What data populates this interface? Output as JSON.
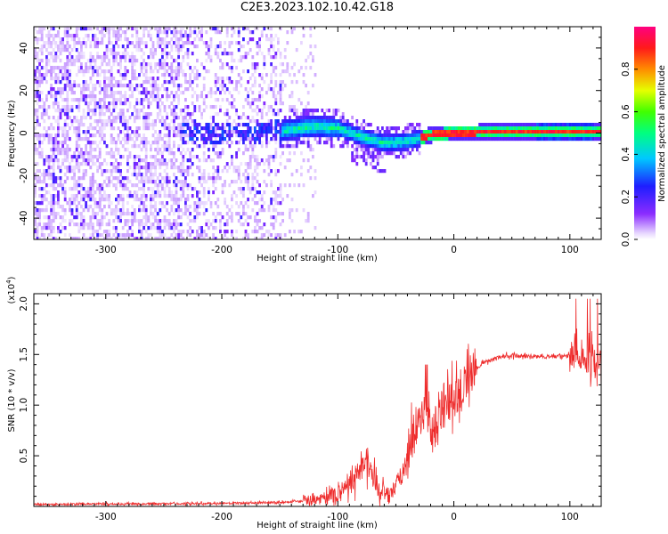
{
  "title": "C2E3.2023.102.10.42.G18",
  "chart_data": [
    {
      "type": "heatmap",
      "xlabel": "Height of straight line (km)",
      "ylabel": "Frequency (Hz)",
      "xlim": [
        -362,
        127
      ],
      "ylim": [
        -50,
        50
      ],
      "x_ticks": [
        -300,
        -200,
        -100,
        0,
        100
      ],
      "y_ticks": [
        -40,
        -20,
        0,
        20,
        40
      ],
      "colorbar": {
        "label": "Normalized spectral amplitude",
        "range": [
          0.0,
          1.0
        ],
        "ticks": [
          0.0,
          0.2,
          0.4,
          0.6,
          0.8
        ],
        "tick_labels": [
          "0.0",
          "0.2",
          "0.4",
          "0.6",
          "0.8"
        ]
      },
      "ridge": [
        {
          "x": -230,
          "f": 0
        },
        {
          "x": -200,
          "f": 0
        },
        {
          "x": -150,
          "f": 2
        },
        {
          "x": -120,
          "f": 4
        },
        {
          "x": -100,
          "f": 3
        },
        {
          "x": -80,
          "f": -1
        },
        {
          "x": -60,
          "f": -4
        },
        {
          "x": -40,
          "f": -3
        },
        {
          "x": -20,
          "f": 0
        },
        {
          "x": 0,
          "f": 1
        },
        {
          "x": 50,
          "f": 1.5
        },
        {
          "x": 100,
          "f": 1.5
        },
        {
          "x": 127,
          "f": 1.5
        }
      ]
    },
    {
      "type": "line",
      "xlabel": "Height of straight line (km)",
      "ylabel": "SNR (10 * v/v)",
      "y_multiplier": "(x10",
      "y_multiplier_exp": "4",
      "y_multiplier_close": ")",
      "xlim": [
        -362,
        127
      ],
      "ylim": [
        0,
        2.1
      ],
      "x_ticks": [
        -300,
        -200,
        -100,
        0,
        100
      ],
      "y_ticks": [
        0.5,
        1.0,
        1.5,
        2.0
      ],
      "y_tick_labels": [
        "0.5",
        "1.0",
        "1.5",
        "2.0"
      ],
      "color": "#ee2b2b",
      "series_trend": [
        {
          "x": -362,
          "y": 0.02
        },
        {
          "x": -200,
          "y": 0.03
        },
        {
          "x": -150,
          "y": 0.04
        },
        {
          "x": -120,
          "y": 0.06
        },
        {
          "x": -100,
          "y": 0.12
        },
        {
          "x": -85,
          "y": 0.3
        },
        {
          "x": -75,
          "y": 0.45
        },
        {
          "x": -65,
          "y": 0.18
        },
        {
          "x": -55,
          "y": 0.1
        },
        {
          "x": -45,
          "y": 0.3
        },
        {
          "x": -35,
          "y": 0.75
        },
        {
          "x": -25,
          "y": 0.95
        },
        {
          "x": -18,
          "y": 0.7
        },
        {
          "x": -10,
          "y": 1.05
        },
        {
          "x": 0,
          "y": 1.05
        },
        {
          "x": 10,
          "y": 1.25
        },
        {
          "x": 25,
          "y": 1.42
        },
        {
          "x": 45,
          "y": 1.49
        },
        {
          "x": 70,
          "y": 1.48
        },
        {
          "x": 95,
          "y": 1.48
        },
        {
          "x": 105,
          "y": 1.5
        },
        {
          "x": 127,
          "y": 1.42
        }
      ]
    }
  ]
}
